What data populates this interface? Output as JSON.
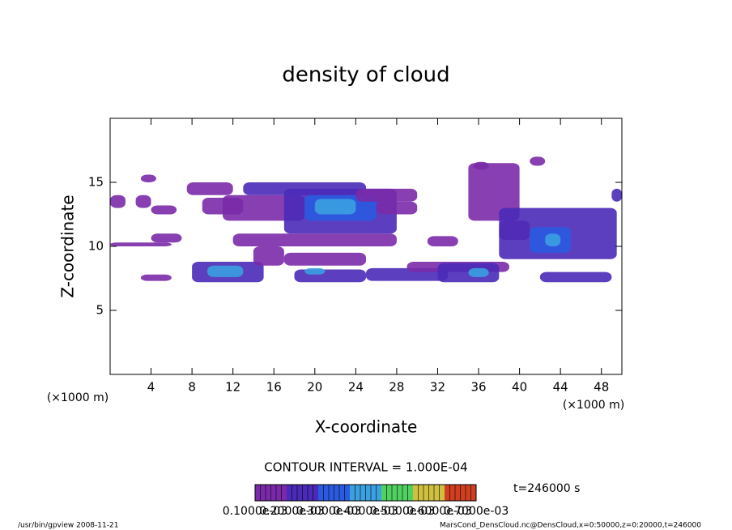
{
  "chart_data": {
    "type": "contour",
    "title": "density of cloud",
    "xlabel": "X-coordinate",
    "ylabel": "Z-coordinate",
    "xunit_left": "(×1000 m)",
    "xunit_right": "(×1000 m)",
    "xlim": [
      0,
      50
    ],
    "ylim": [
      0,
      20
    ],
    "xticks": [
      4,
      8,
      12,
      16,
      20,
      24,
      28,
      32,
      36,
      40,
      44,
      48
    ],
    "yticks": [
      5,
      10,
      15
    ],
    "contour_interval": "CONTOUR INTERVAL = 1.000E-04",
    "time_label": "t=246000 s",
    "footer_left": "/usr/bin/gpview  2008-11-21",
    "footer_right": "MarsCond_DensCloud.nc@DensCloud,x=0:50000,z=0:20000,t=246000",
    "colorbar": {
      "levels": [
        {
          "value": 0.0001,
          "label": "0.1000e-03"
        },
        {
          "value": 0.0002,
          "label": "0.2000e-03"
        },
        {
          "value": 0.0003,
          "label": "0.3000e-03"
        },
        {
          "value": 0.0004,
          "label": "0.4000e-03"
        },
        {
          "value": 0.0005,
          "label": "0.5000e-03"
        },
        {
          "value": 0.0006,
          "label": "0.6000e-03"
        },
        {
          "value": 0.0007,
          "label": "0.7000e-03"
        }
      ],
      "colors": [
        "#7a2aa8",
        "#4a2ab8",
        "#2a5ae0",
        "#3aa0e0",
        "#50d060",
        "#d0c040",
        "#d04020"
      ]
    },
    "patches": [
      {
        "x": [
          0,
          1.5
        ],
        "z": [
          13,
          14
        ],
        "value": 0.0001
      },
      {
        "x": [
          3,
          4.5
        ],
        "z": [
          15,
          15.6
        ],
        "value": 0.0001
      },
      {
        "x": [
          2.5,
          4
        ],
        "z": [
          13,
          14
        ],
        "value": 0.0001
      },
      {
        "x": [
          0,
          6
        ],
        "z": [
          10,
          10.3
        ],
        "value": 0.0001
      },
      {
        "x": [
          4,
          7
        ],
        "z": [
          10.3,
          11
        ],
        "value": 0.0001
      },
      {
        "x": [
          4,
          6.5
        ],
        "z": [
          12.5,
          13.2
        ],
        "value": 0.0001
      },
      {
        "x": [
          3,
          6
        ],
        "z": [
          7.3,
          7.8
        ],
        "value": 0.0001
      },
      {
        "x": [
          8,
          15
        ],
        "z": [
          7.2,
          8.8
        ],
        "value": 0.0002
      },
      {
        "x": [
          9.5,
          13
        ],
        "z": [
          7.6,
          8.5
        ],
        "value": 0.0004
      },
      {
        "x": [
          7.5,
          12
        ],
        "z": [
          14,
          15
        ],
        "value": 0.0001
      },
      {
        "x": [
          9,
          13
        ],
        "z": [
          12.5,
          13.8
        ],
        "value": 0.0001
      },
      {
        "x": [
          11,
          19
        ],
        "z": [
          12,
          14
        ],
        "value": 0.0001
      },
      {
        "x": [
          13,
          25
        ],
        "z": [
          14,
          15
        ],
        "value": 0.0002
      },
      {
        "x": [
          12,
          28
        ],
        "z": [
          10,
          11
        ],
        "value": 0.0001
      },
      {
        "x": [
          17,
          28
        ],
        "z": [
          11,
          14.5
        ],
        "value": 0.0002
      },
      {
        "x": [
          19,
          26
        ],
        "z": [
          12,
          14
        ],
        "value": 0.0003
      },
      {
        "x": [
          20,
          24
        ],
        "z": [
          12.5,
          13.7
        ],
        "value": 0.0004
      },
      {
        "x": [
          14,
          17
        ],
        "z": [
          8.5,
          10
        ],
        "value": 0.0001
      },
      {
        "x": [
          17,
          25
        ],
        "z": [
          8.5,
          9.5
        ],
        "value": 0.0001
      },
      {
        "x": [
          18,
          25
        ],
        "z": [
          7.2,
          8.2
        ],
        "value": 0.0002
      },
      {
        "x": [
          19,
          21
        ],
        "z": [
          7.8,
          8.3
        ],
        "value": 0.0004
      },
      {
        "x": [
          24,
          30
        ],
        "z": [
          13.5,
          14.5
        ],
        "value": 0.0001
      },
      {
        "x": [
          26,
          30
        ],
        "z": [
          12.5,
          13.5
        ],
        "value": 0.0001
      },
      {
        "x": [
          25,
          33
        ],
        "z": [
          7.3,
          8.3
        ],
        "value": 0.0002
      },
      {
        "x": [
          29,
          39
        ],
        "z": [
          8,
          8.8
        ],
        "value": 0.0001
      },
      {
        "x": [
          31,
          34
        ],
        "z": [
          10,
          10.8
        ],
        "value": 0.0001
      },
      {
        "x": [
          32,
          38
        ],
        "z": [
          7.2,
          8.7
        ],
        "value": 0.0002
      },
      {
        "x": [
          35,
          37
        ],
        "z": [
          7.6,
          8.3
        ],
        "value": 0.0004
      },
      {
        "x": [
          35,
          40
        ],
        "z": [
          12,
          16.5
        ],
        "value": 0.0001
      },
      {
        "x": [
          35.5,
          37
        ],
        "z": [
          16,
          16.6
        ],
        "value": 0.0001
      },
      {
        "x": [
          41,
          42.5
        ],
        "z": [
          16.3,
          17
        ],
        "value": 0.0001
      },
      {
        "x": [
          38,
          41
        ],
        "z": [
          10.5,
          12
        ],
        "value": 0.0001
      },
      {
        "x": [
          38,
          49.5
        ],
        "z": [
          9,
          13
        ],
        "value": 0.0002
      },
      {
        "x": [
          41,
          45
        ],
        "z": [
          9.5,
          11.5
        ],
        "value": 0.0003
      },
      {
        "x": [
          42.5,
          44
        ],
        "z": [
          10,
          11
        ],
        "value": 0.0004
      },
      {
        "x": [
          42,
          49
        ],
        "z": [
          7.2,
          8
        ],
        "value": 0.0002
      },
      {
        "x": [
          49,
          50
        ],
        "z": [
          13.5,
          14.5
        ],
        "value": 0.0002
      }
    ]
  }
}
